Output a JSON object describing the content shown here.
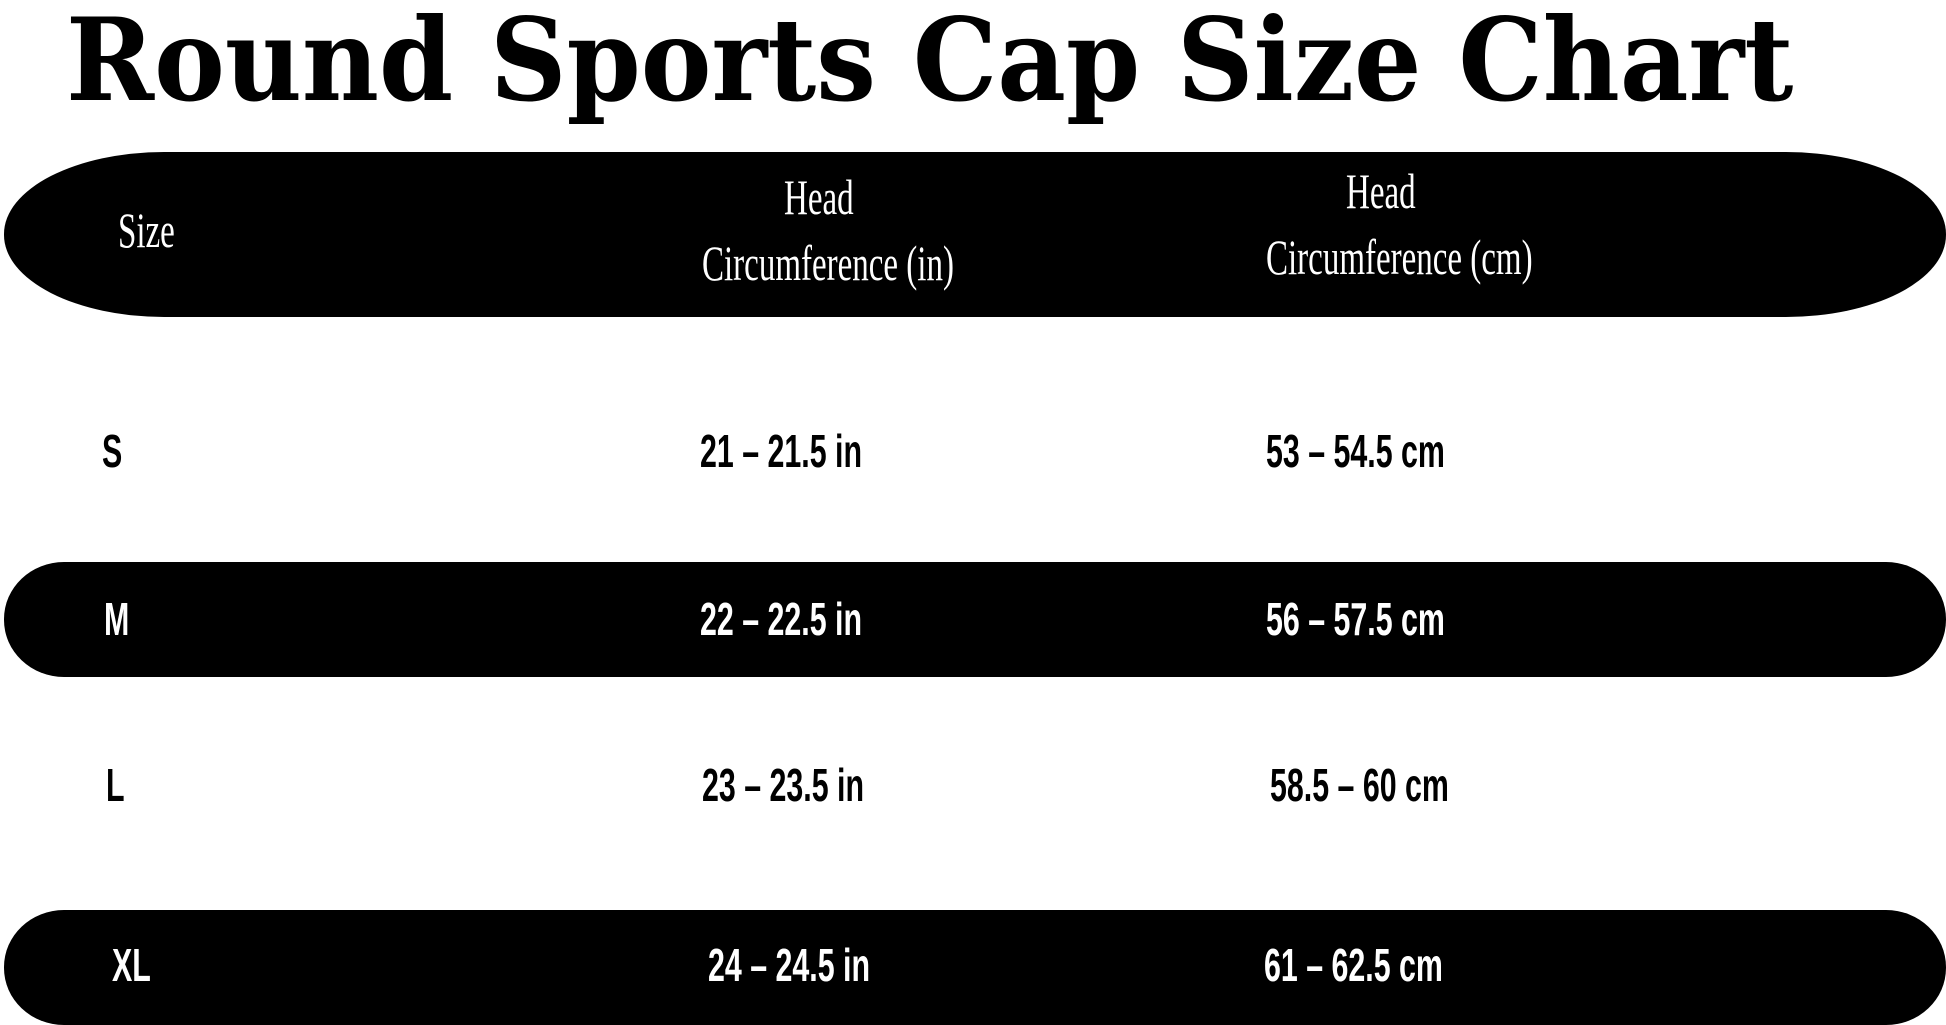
{
  "title": "Round Sports Cap Size Chart",
  "header": {
    "size": "Size",
    "in_line1": "Head",
    "in_line2": "Circumference (in)",
    "cm_line1": "Head",
    "cm_line2": "Circumference (cm)"
  },
  "rows": [
    {
      "size": "S",
      "inches": "21 – 21.5 in",
      "cm": "53 – 54.5 cm"
    },
    {
      "size": "M",
      "inches": "22 – 22.5 in",
      "cm": "56 – 57.5 cm"
    },
    {
      "size": "L",
      "inches": "23 – 23.5 in",
      "cm": "58.5 – 60 cm"
    },
    {
      "size": "XL",
      "inches": "24 – 24.5 in",
      "cm": "61 – 62.5 cm"
    }
  ],
  "colors": {
    "band": "#000000",
    "band_text": "#ffffff",
    "page_text": "#000000",
    "background": "#ffffff"
  }
}
